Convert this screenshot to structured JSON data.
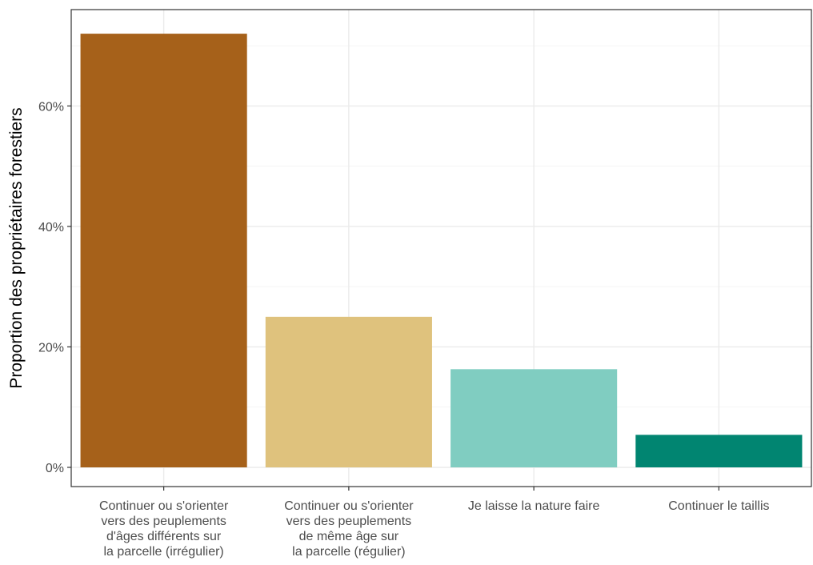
{
  "chart_data": {
    "type": "bar",
    "title": "",
    "xlabel": "",
    "ylabel": "Proportion des propriétaires forestiers",
    "categories": [
      [
        "Continuer ou s'orienter",
        "vers des peuplements",
        "d'âges différents sur",
        "la parcelle (irrégulier)"
      ],
      [
        "Continuer ou s'orienter",
        "vers des peuplements",
        "de même âge sur",
        "la parcelle (régulier)"
      ],
      [
        "Je laisse la nature faire"
      ],
      [
        "Continuer le taillis"
      ]
    ],
    "values": [
      72.0,
      25.0,
      16.3,
      5.4
    ],
    "bar_colors": [
      "#a6611a",
      "#dfc27d",
      "#80cdc1",
      "#018571"
    ],
    "ylim": [
      0,
      76
    ],
    "y_ticks": [
      0,
      20,
      40,
      60
    ],
    "y_tick_labels": [
      "0%",
      "20%",
      "40%",
      "60%"
    ],
    "y_unit": "%",
    "grid": true,
    "legend": "none"
  }
}
